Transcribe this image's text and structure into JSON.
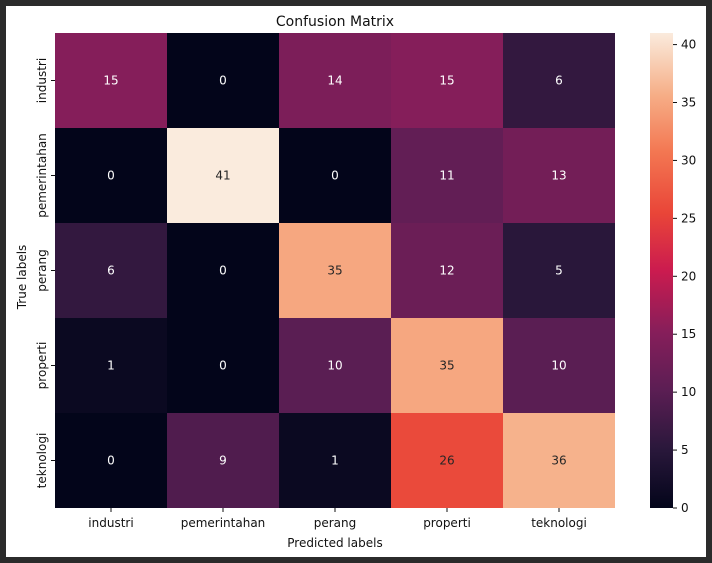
{
  "chart_data": {
    "type": "heatmap",
    "title": "Confusion Matrix",
    "xlabel": "Predicted labels",
    "ylabel": "True labels",
    "x_categories": [
      "industri",
      "pemerintahan",
      "perang",
      "properti",
      "teknologi"
    ],
    "y_categories": [
      "industri",
      "pemerintahan",
      "perang",
      "properti",
      "teknologi"
    ],
    "values": [
      [
        15,
        0,
        14,
        15,
        6
      ],
      [
        0,
        41,
        0,
        11,
        13
      ],
      [
        6,
        0,
        35,
        12,
        5
      ],
      [
        1,
        0,
        10,
        35,
        10
      ],
      [
        0,
        9,
        1,
        26,
        36
      ]
    ],
    "colorbar": {
      "min": 0,
      "max": 41,
      "ticks": [
        0,
        5,
        10,
        15,
        20,
        25,
        30,
        35,
        40
      ]
    },
    "colormap": "rocket"
  }
}
